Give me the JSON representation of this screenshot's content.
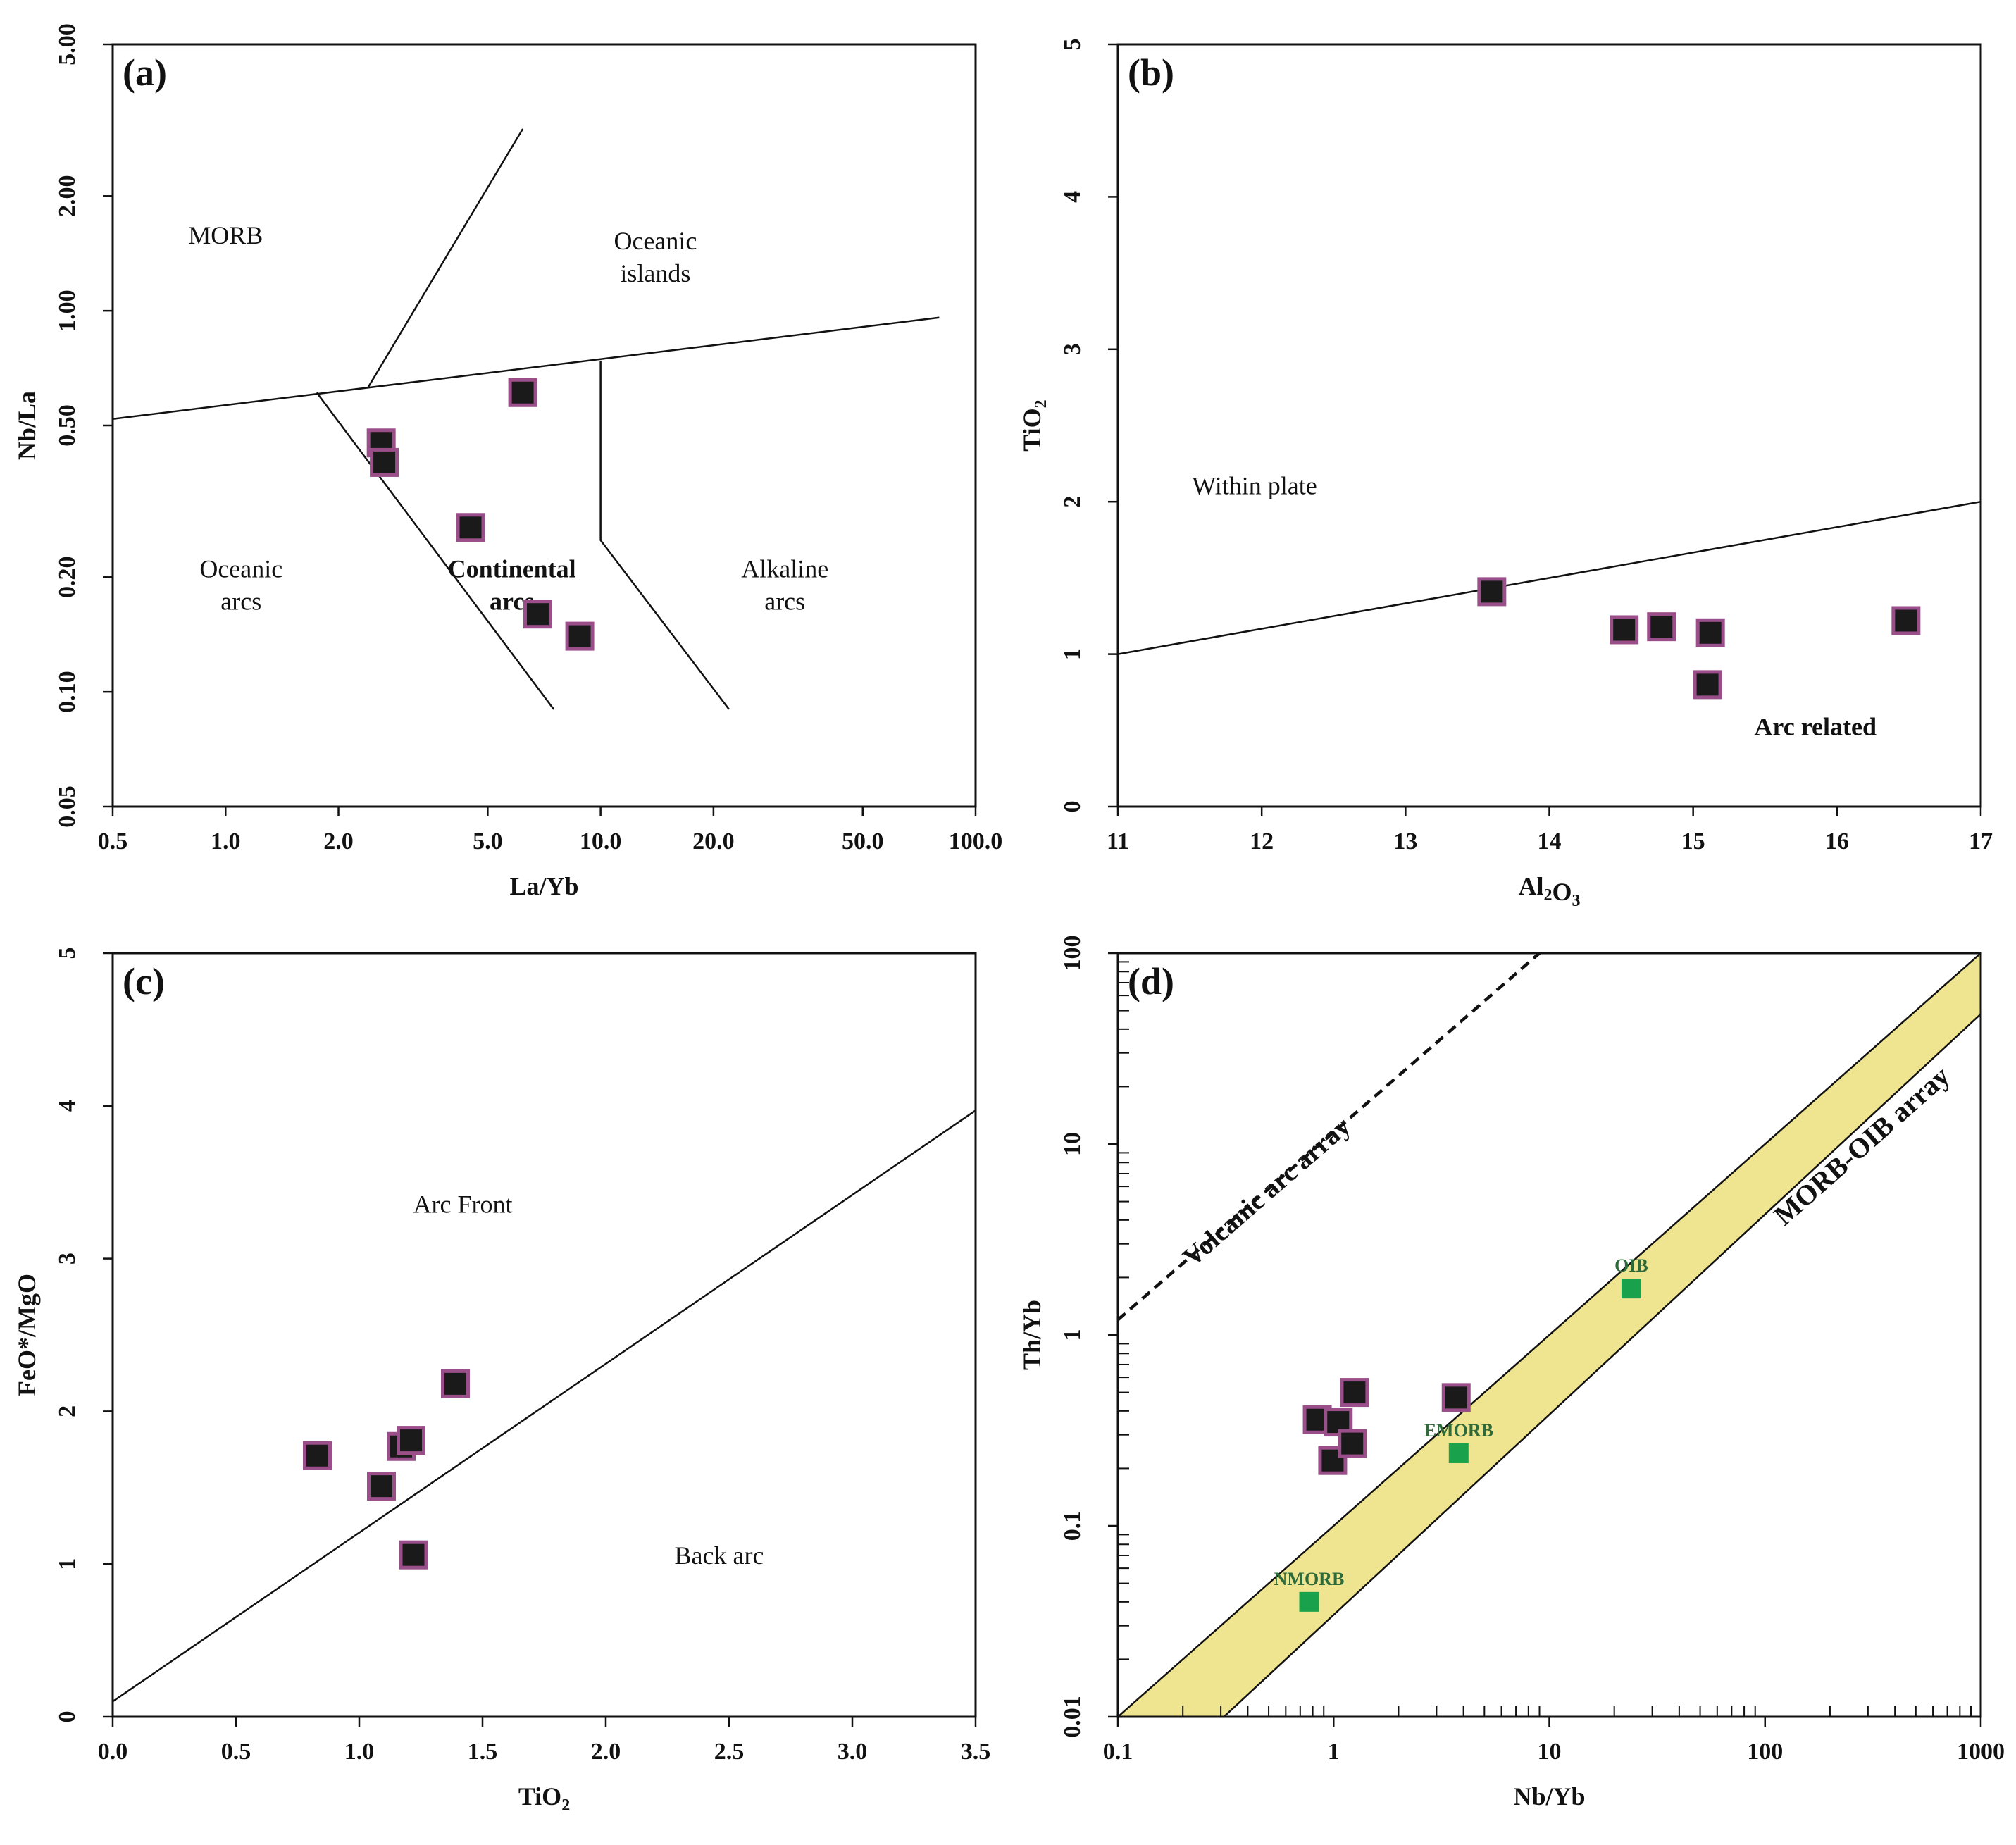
{
  "chart_data": [
    {
      "panel": "(a)",
      "type": "scatter",
      "xlabel": "La/Yb",
      "ylabel": "Nb/La",
      "xscale": "log",
      "yscale": "log",
      "xlim": [
        0.5,
        100
      ],
      "ylim": [
        0.05,
        5
      ],
      "xticks": [
        0.5,
        1,
        2,
        5,
        10,
        20,
        50,
        100
      ],
      "xtick_labels": [
        "0.5",
        "1.0",
        "2.0",
        "5.0",
        "10.0",
        "20.0",
        "50.0",
        "100.0"
      ],
      "yticks": [
        0.05,
        0.1,
        0.2,
        0.5,
        1,
        2,
        5
      ],
      "ytick_labels": [
        "0.05",
        "0.10",
        "0.20",
        "0.50",
        "1.00",
        "2.00",
        "5.00"
      ],
      "lines": [
        {
          "x": [
            0.5,
            80
          ],
          "y": [
            0.52,
            0.96
          ]
        },
        {
          "x": [
            2.4,
            6.2
          ],
          "y": [
            0.63,
            3.0
          ]
        },
        {
          "x": [
            1.75,
            7.5
          ],
          "y": [
            0.61,
            0.09
          ]
        },
        {
          "x": [
            10,
            10,
            22
          ],
          "y": [
            0.74,
            0.25,
            0.09
          ]
        }
      ],
      "regions": [
        {
          "label": "MORB",
          "x": 1.0,
          "y": 1.5
        },
        {
          "label": "Oceanic\nislands",
          "x": 14,
          "y": 1.45
        },
        {
          "label": "Oceanic\narcs",
          "x": 1.1,
          "y": 0.2
        },
        {
          "label": "Continental\narcs",
          "x": 5.8,
          "y": 0.2,
          "bold": true
        },
        {
          "label": "Alkaline\narcs",
          "x": 31,
          "y": 0.2
        }
      ],
      "points": [
        {
          "x": 2.6,
          "y": 0.45
        },
        {
          "x": 2.65,
          "y": 0.4
        },
        {
          "x": 4.5,
          "y": 0.27
        },
        {
          "x": 6.2,
          "y": 0.61
        },
        {
          "x": 6.8,
          "y": 0.16
        },
        {
          "x": 8.8,
          "y": 0.14
        }
      ]
    },
    {
      "panel": "(b)",
      "type": "scatter",
      "xlabel": "Al2O3",
      "ylabel": "TiO2",
      "xlim": [
        11,
        17
      ],
      "ylim": [
        0,
        5
      ],
      "xticks": [
        11,
        12,
        13,
        14,
        15,
        16,
        17
      ],
      "xtick_labels": [
        "11",
        "12",
        "13",
        "14",
        "15",
        "16",
        "17"
      ],
      "yticks": [
        0,
        1,
        2,
        3,
        4,
        5
      ],
      "ytick_labels": [
        "0",
        "1",
        "2",
        "3",
        "4",
        "5"
      ],
      "lines": [
        {
          "x": [
            11,
            17
          ],
          "y": [
            1.0,
            2.0
          ]
        }
      ],
      "regions": [
        {
          "label": "Within plate",
          "x": 11.95,
          "y": 2.05
        },
        {
          "label": "Arc related",
          "x": 15.85,
          "y": 0.47,
          "bold": true
        }
      ],
      "points": [
        {
          "x": 13.6,
          "y": 1.41
        },
        {
          "x": 14.52,
          "y": 1.16
        },
        {
          "x": 14.78,
          "y": 1.18
        },
        {
          "x": 15.12,
          "y": 1.14
        },
        {
          "x": 15.1,
          "y": 0.8
        },
        {
          "x": 16.48,
          "y": 1.22
        }
      ]
    },
    {
      "panel": "(c)",
      "type": "scatter",
      "xlabel": "TiO2",
      "ylabel": "FeO*/MgO",
      "xlim": [
        0,
        3.5
      ],
      "ylim": [
        0,
        5
      ],
      "xticks": [
        0,
        0.5,
        1,
        1.5,
        2,
        2.5,
        3,
        3.5
      ],
      "xtick_labels": [
        "0.0",
        "0.5",
        "1.0",
        "1.5",
        "2.0",
        "2.5",
        "3.0",
        "3.5"
      ],
      "yticks": [
        0,
        1,
        2,
        3,
        4,
        5
      ],
      "ytick_labels": [
        "0",
        "1",
        "2",
        "3",
        "4",
        "5"
      ],
      "lines": [
        {
          "x": [
            0,
            3.5
          ],
          "y": [
            0.1,
            3.97
          ]
        }
      ],
      "regions": [
        {
          "label": "Arc Front",
          "x": 1.42,
          "y": 3.3
        },
        {
          "label": "Back arc",
          "x": 2.46,
          "y": 1.0
        }
      ],
      "points": [
        {
          "x": 0.83,
          "y": 1.71
        },
        {
          "x": 1.09,
          "y": 1.51
        },
        {
          "x": 1.17,
          "y": 1.77
        },
        {
          "x": 1.21,
          "y": 1.81
        },
        {
          "x": 1.22,
          "y": 1.06
        },
        {
          "x": 1.39,
          "y": 2.18
        }
      ]
    },
    {
      "panel": "(d)",
      "type": "scatter",
      "xlabel": "Nb/Yb",
      "ylabel": "Th/Yb",
      "xscale": "log",
      "yscale": "log",
      "xlim": [
        0.1,
        1000
      ],
      "ylim": [
        0.01,
        100
      ],
      "xticks": [
        0.1,
        1,
        10,
        100,
        1000
      ],
      "xtick_labels": [
        "0.1",
        "1",
        "10",
        "100",
        "1000"
      ],
      "yticks": [
        0.01,
        0.1,
        1,
        10,
        100
      ],
      "ytick_labels": [
        "0.01",
        "0.1",
        "1",
        "10",
        "100"
      ],
      "band": {
        "label": "MORB-OIB array",
        "upper": {
          "x": [
            0.1,
            1000
          ],
          "y": [
            0.01,
            100
          ]
        },
        "lower": {
          "x": [
            0.31,
            1000
          ],
          "y": [
            0.01,
            48
          ]
        }
      },
      "dashed_line": {
        "label": "Volcanic arc array",
        "x": [
          0.1,
          9
        ],
        "y": [
          1.2,
          100
        ]
      },
      "references": [
        {
          "label": "NMORB",
          "x": 0.77,
          "y": 0.04
        },
        {
          "label": "EMORB",
          "x": 3.8,
          "y": 0.24
        },
        {
          "label": "OIB",
          "x": 24,
          "y": 1.75
        }
      ],
      "points": [
        {
          "x": 0.84,
          "y": 0.36
        },
        {
          "x": 1.05,
          "y": 0.35
        },
        {
          "x": 0.99,
          "y": 0.22
        },
        {
          "x": 1.22,
          "y": 0.27
        },
        {
          "x": 1.25,
          "y": 0.5
        },
        {
          "x": 3.7,
          "y": 0.47
        }
      ]
    }
  ]
}
